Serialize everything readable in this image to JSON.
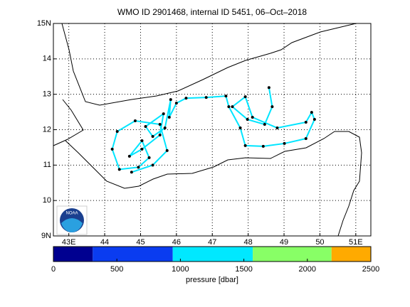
{
  "chart_data": {
    "type": "map",
    "title": "WMO ID 2901468, internal ID 5451, 06–Oct–2018",
    "xlim": [
      42.57,
      51.42
    ],
    "ylim": [
      9,
      15
    ],
    "xticks": [
      {
        "value": 43,
        "label": "43E"
      },
      44,
      45,
      46,
      47,
      48,
      49,
      50,
      {
        "value": 51,
        "label": "51E"
      }
    ],
    "yticks": [
      {
        "value": 9,
        "label": "9N"
      },
      10,
      11,
      12,
      13,
      14,
      {
        "value": 15,
        "label": "15N"
      }
    ],
    "grid": true,
    "logo_text": "NOAA",
    "track": {
      "color": "#00e5ff",
      "marker_color": "#000000",
      "lon": [
        48.58,
        48.67,
        48.46,
        47.98,
        47.56,
        47.92,
        48.12,
        48.81,
        49.61,
        49.77,
        49.85,
        49.61,
        49.01,
        48.42,
        47.92,
        47.78,
        47.46,
        47.38,
        46.83,
        46.27,
        46.0,
        45.8,
        45.84,
        45.68,
        45.34,
        45.14,
        45.64,
        45.54,
        45.04,
        44.69,
        45.04,
        45.24,
        44.94,
        44.41,
        44.21,
        44.35,
        44.85,
        45.54,
        45.74,
        45.34,
        44.75
      ],
      "lat": [
        13.19,
        12.65,
        12.15,
        12.29,
        12.65,
        12.93,
        12.35,
        12.05,
        12.21,
        12.49,
        12.29,
        11.75,
        11.61,
        11.53,
        11.55,
        12.05,
        12.65,
        12.95,
        12.91,
        12.89,
        12.75,
        12.35,
        12.85,
        12.05,
        11.81,
        12.09,
        12.45,
        11.85,
        11.45,
        11.25,
        11.69,
        11.21,
        10.94,
        10.88,
        11.45,
        11.95,
        12.25,
        12.15,
        11.41,
        11.0,
        10.8
      ]
    },
    "colorbar": {
      "label": "pressure [dbar]",
      "lim": [
        0,
        2500
      ],
      "ticks": [
        0,
        500,
        1000,
        1500,
        2000,
        2500
      ],
      "segments": [
        {
          "from": 0,
          "to": 310,
          "color": "#000090"
        },
        {
          "from": 310,
          "to": 940,
          "color": "#0a3cf0"
        },
        {
          "from": 940,
          "to": 1570,
          "color": "#00e8ff"
        },
        {
          "from": 1570,
          "to": 2190,
          "color": "#88ff66"
        },
        {
          "from": 2190,
          "to": 2500,
          "color": "#ffaa00"
        }
      ]
    }
  }
}
